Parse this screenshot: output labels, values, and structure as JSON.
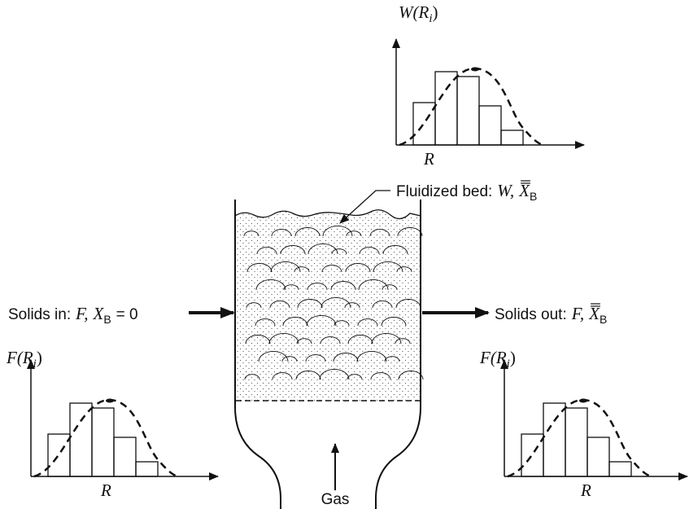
{
  "top_plot": {
    "y_label": {
      "main": "W(R",
      "sub": "i",
      "close": ")"
    },
    "x_label": "R"
  },
  "bed_label": {
    "text": "Fluidized bed:",
    "var": "W,",
    "symbol": "X",
    "sub": "B"
  },
  "inlet_label": {
    "text": "Solids in:",
    "var": "F,",
    "symbol": "X",
    "sub": "B",
    "equals": "= 0"
  },
  "outlet_label": {
    "text": "Solids out:",
    "var": "F,",
    "symbol": "X",
    "sub": "B"
  },
  "left_plot": {
    "y_label": {
      "main": "F(R",
      "sub": "i",
      "close": ")"
    },
    "x_label": "R"
  },
  "right_plot": {
    "y_label": {
      "main": "F(R",
      "sub": "i",
      "close": ")"
    },
    "x_label": "R"
  },
  "gas_label": "Gas"
}
